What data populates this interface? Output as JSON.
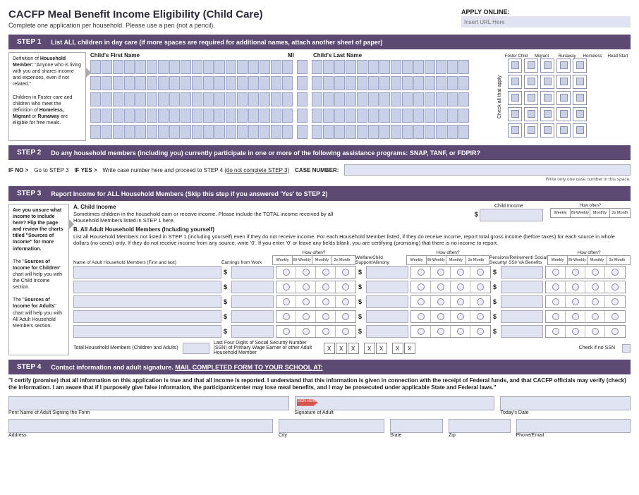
{
  "header": {
    "title": "CACFP Meal Benefit Income Eligibility (Child Care)",
    "subtitle": "Complete one application per household. Please use a pen (not a pencil).",
    "apply_label": "APPLY ONLINE:",
    "apply_placeholder": "Insert URL Here"
  },
  "steps": {
    "s1": {
      "num": "STEP 1",
      "text": "List ALL children in day care (if more spaces are required for additional names, attach another sheet of paper)"
    },
    "s2": {
      "num": "STEP 2",
      "text": "Do any household members (including you) currently participate in one or more of the following assistance programs: SNAP, TANF, or FDPIR?"
    },
    "s3": {
      "num": "STEP 3",
      "text": "Report Income for ALL Household Members (Skip this step if you answered 'Yes' to STEP 2)"
    },
    "s4": {
      "num": "STEP 4",
      "text": "Contact information and adult signature.   ",
      "mail": "MAIL COMPLETED FORM TO YOUR SCHOOL AT:"
    }
  },
  "step1": {
    "sidebar_def": "Definition of ",
    "sidebar_def_b": "Household Member:",
    "sidebar_def2": " \"Anyone who is living with you and shares income and expenses, even if not related.\"",
    "sidebar_p2a": "Children in Foster care and children who meet the definition of ",
    "sidebar_p2b": "Homeless, Migrant",
    "sidebar_p2c": " or ",
    "sidebar_p2d": "Runaway",
    "sidebar_p2e": " are eligible for free meals.",
    "col_first": "Child's First Name",
    "col_mi": "MI",
    "col_last": "Child's Last Name",
    "vert": "Check all that apply",
    "checks": [
      "Foster Child",
      "Migrant",
      "Runaway",
      "Homeless",
      "Head Start"
    ],
    "first_cells": 18,
    "mi_cells": 1,
    "last_cells": 14,
    "rows": 5
  },
  "step2": {
    "ifno": "IF NO >",
    "ifno_text": "Go to STEP 3",
    "ifyes": "IF YES >",
    "ifyes_text": "Write case number here and proceed to STEP 4 ",
    "ifyes_u": "(do not complete STEP 3)",
    "case": "CASE NUMBER:",
    "note": "Write only one case number in this space."
  },
  "step3": {
    "side_q": "Are you unsure what income to include here? Flip the page and review the charts titled \"Sources of Income\" for more information.",
    "side_c": "The \"Sources of Income for Children\" chart will help you with the Child Income section.",
    "side_a": "The \"Sources of Income for Adults\" chart will help you with All Adult Household Members section.",
    "a_head": "A.  Child Income",
    "a_text": "Sometimes children in the household earn or receive income. Please include the TOTAL income received by all Household Members listed in STEP 1 here.",
    "ci_label": "Child Income",
    "how_often": "How often?",
    "freq": [
      "Weekly",
      "Bi-Weekly",
      "Monthly",
      "2x Month"
    ],
    "b_head": "B.  All Adult Household Members (Including yourself)",
    "b_text": "List all Household Members not listed in STEP 1 (including yourself) even if they do not receive income. For each Household Member listed, if they do receive income, report total gross income (before taxes) for each source in whole dollars (no cents) only. If they do not receive income from any source, write '0'. If you enter '0' or leave any fields blank, you are certifying (promising) that there is no income to report.",
    "col_name": "Name of Adult Household Members (First and last)",
    "col_earn": "Earnings from Work",
    "col_welfare": "Welfare/Child Support/Alimony",
    "col_pension": "Pensions/Retirement/ Social Security/ SSI/ VA Benefits",
    "rows": 5,
    "tot_label": "Total Household Members (Children and Adults)",
    "ssn_label": "Last Four Digits of Social Security Number (SSN) of Primary Wage Earner or other Adult Household Member",
    "ssn_x": "X",
    "nossn": "Check if no SSN"
  },
  "step4": {
    "cert": "\"I certify (promise) that all information on this application is true and that all income is reported. I understand that this information is given in connection with the receipt of Federal funds, and that CACFP officials may verify (check) the information. I am aware that if I purposely give false information, the participant/center may lose meal benefits, and I may be prosecuted under applicable State and Federal laws.\"",
    "sign_here": "SIGN HERE",
    "print_name": "Print Name of Adult Signing the Form",
    "signature": "Signature of Adult",
    "date": "Today's Date",
    "address": "Address",
    "city": "City",
    "state": "State",
    "zip": "Zip",
    "phone": "Phone/Email"
  },
  "colors": {
    "step_bar": "#5c4a73",
    "field_bg": "#dfe3f2",
    "cell_bg": "#c9d0e8"
  }
}
